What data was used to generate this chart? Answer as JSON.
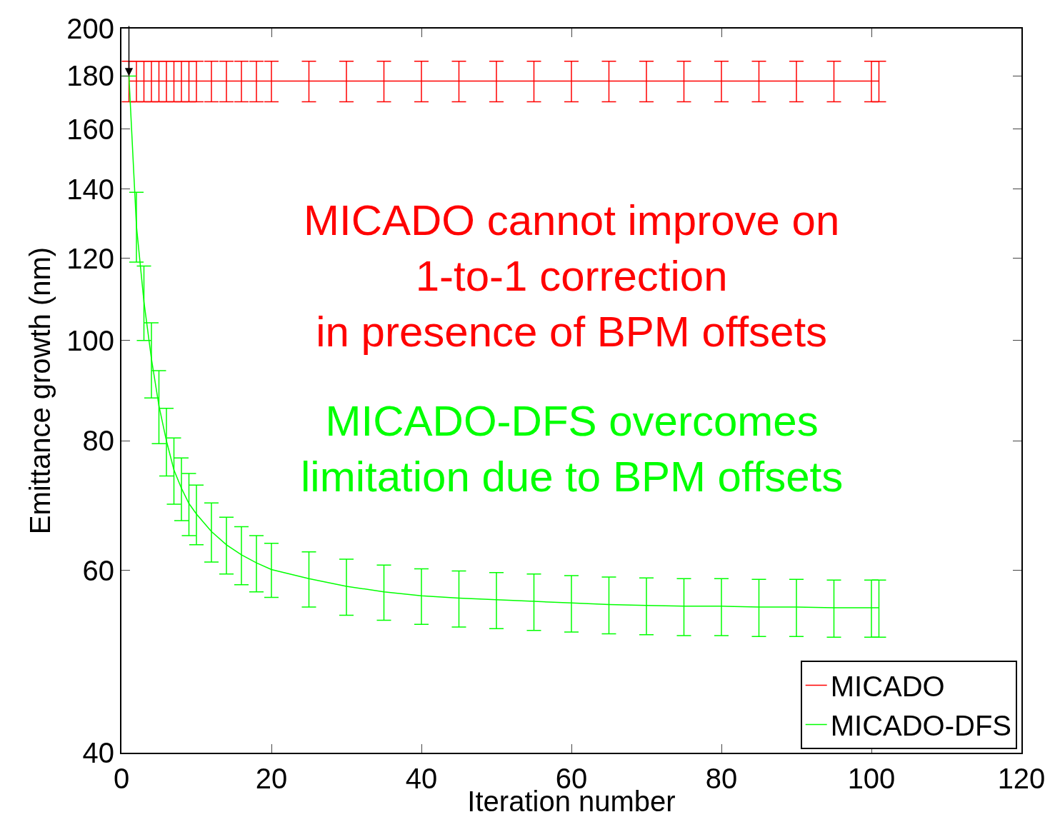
{
  "chart_data": {
    "type": "line",
    "xlabel": "Iteration number",
    "ylabel": "Emittance growth (nm)",
    "log": "y",
    "grid": false,
    "legend": "bottom right",
    "marker": "none",
    "line_style": "solid",
    "xlim": [
      0,
      120
    ],
    "xticks": [
      0,
      20,
      40,
      60,
      80,
      100,
      120
    ],
    "ylim": [
      40,
      200
    ],
    "yticks": [
      40,
      60,
      80,
      100,
      120,
      140,
      160,
      180,
      200
    ],
    "series": [
      {
        "name": "MICADO",
        "color": "#ff0000",
        "x": [
          1,
          2,
          3,
          4,
          5,
          6,
          7,
          8,
          9,
          10,
          12,
          14,
          16,
          18,
          20,
          25,
          30,
          35,
          40,
          45,
          50,
          55,
          60,
          65,
          70,
          75,
          80,
          85,
          90,
          95,
          100,
          101
        ],
        "values": [
          178,
          178,
          178,
          178,
          178,
          178,
          178,
          178,
          178,
          178,
          178,
          178,
          178,
          178,
          178,
          178,
          178,
          178,
          178,
          178,
          178,
          178,
          178,
          178,
          178,
          178,
          178,
          178,
          178,
          178,
          178,
          178
        ],
        "errors": [
          8,
          8,
          8,
          8,
          8,
          8,
          8,
          8,
          8,
          8,
          8,
          8,
          8,
          8,
          8,
          8,
          8,
          8,
          8,
          8,
          8,
          8,
          8,
          8,
          8,
          8,
          8,
          8,
          8,
          8,
          8,
          8
        ]
      },
      {
        "name": "MICADO-DFS",
        "color": "#00ff00",
        "x": [
          1,
          2,
          3,
          4,
          5,
          6,
          7,
          8,
          9,
          10,
          12,
          14,
          16,
          18,
          20,
          25,
          30,
          35,
          40,
          45,
          50,
          55,
          60,
          65,
          70,
          75,
          80,
          85,
          90,
          95,
          100,
          101
        ],
        "values": [
          180,
          129,
          109,
          96,
          86.5,
          80,
          75,
          72,
          69.6,
          68,
          65.4,
          63.5,
          62.1,
          61,
          60.1,
          58.9,
          57.9,
          57.2,
          56.7,
          56.4,
          56.2,
          56,
          55.8,
          55.6,
          55.5,
          55.4,
          55.4,
          55.3,
          55.3,
          55.2,
          55.2,
          55.2
        ],
        "errors": [
          null,
          10,
          9,
          8,
          7,
          6,
          5.5,
          5,
          4.8,
          4.5,
          4.3,
          4,
          4,
          3.8,
          3.6,
          3.6,
          3.6,
          3.5,
          3.5,
          3.5,
          3.5,
          3.5,
          3.5,
          3.5,
          3.5,
          3.5,
          3.5,
          3.5,
          3.5,
          3.5,
          3.5,
          3.5
        ]
      }
    ],
    "annotations": [
      "MICADO cannot improve on\n1-to-1 correction\nin presence of BPM offsets",
      "MICADO-DFS overcomes\nlimitation due to BPM offsets"
    ]
  }
}
